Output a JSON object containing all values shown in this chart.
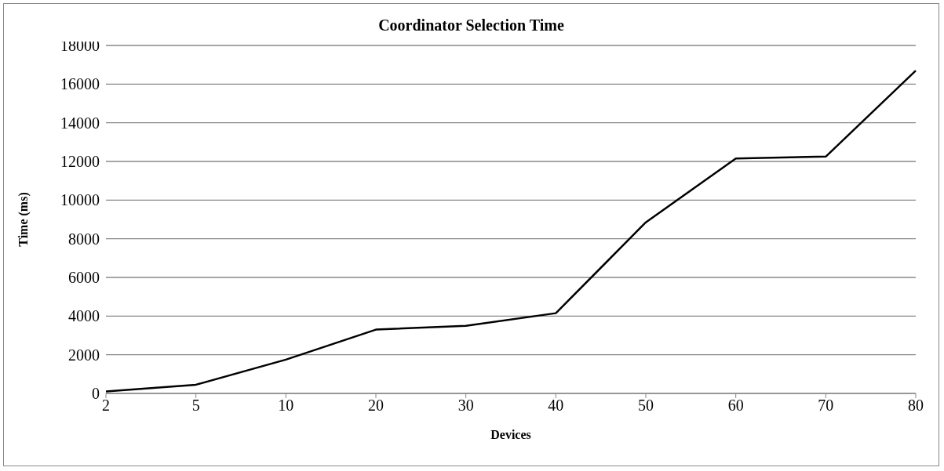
{
  "chart_data": {
    "type": "line",
    "title": "Coordinator Selection Time",
    "xlabel": "Devices",
    "ylabel": "Time (ms)",
    "categories": [
      "2",
      "5",
      "10",
      "20",
      "30",
      "40",
      "50",
      "60",
      "70",
      "80"
    ],
    "series": [
      {
        "color": "#000000",
        "values": [
          100,
          450,
          1750,
          3300,
          3500,
          4150,
          8850,
          12150,
          12250,
          16700
        ]
      }
    ],
    "ylim": [
      0,
      18000
    ],
    "yticks": [
      0,
      2000,
      4000,
      6000,
      8000,
      10000,
      12000,
      14000,
      16000,
      18000
    ],
    "grid": "y",
    "legend": false,
    "marker": "none",
    "line_style": "solid"
  }
}
